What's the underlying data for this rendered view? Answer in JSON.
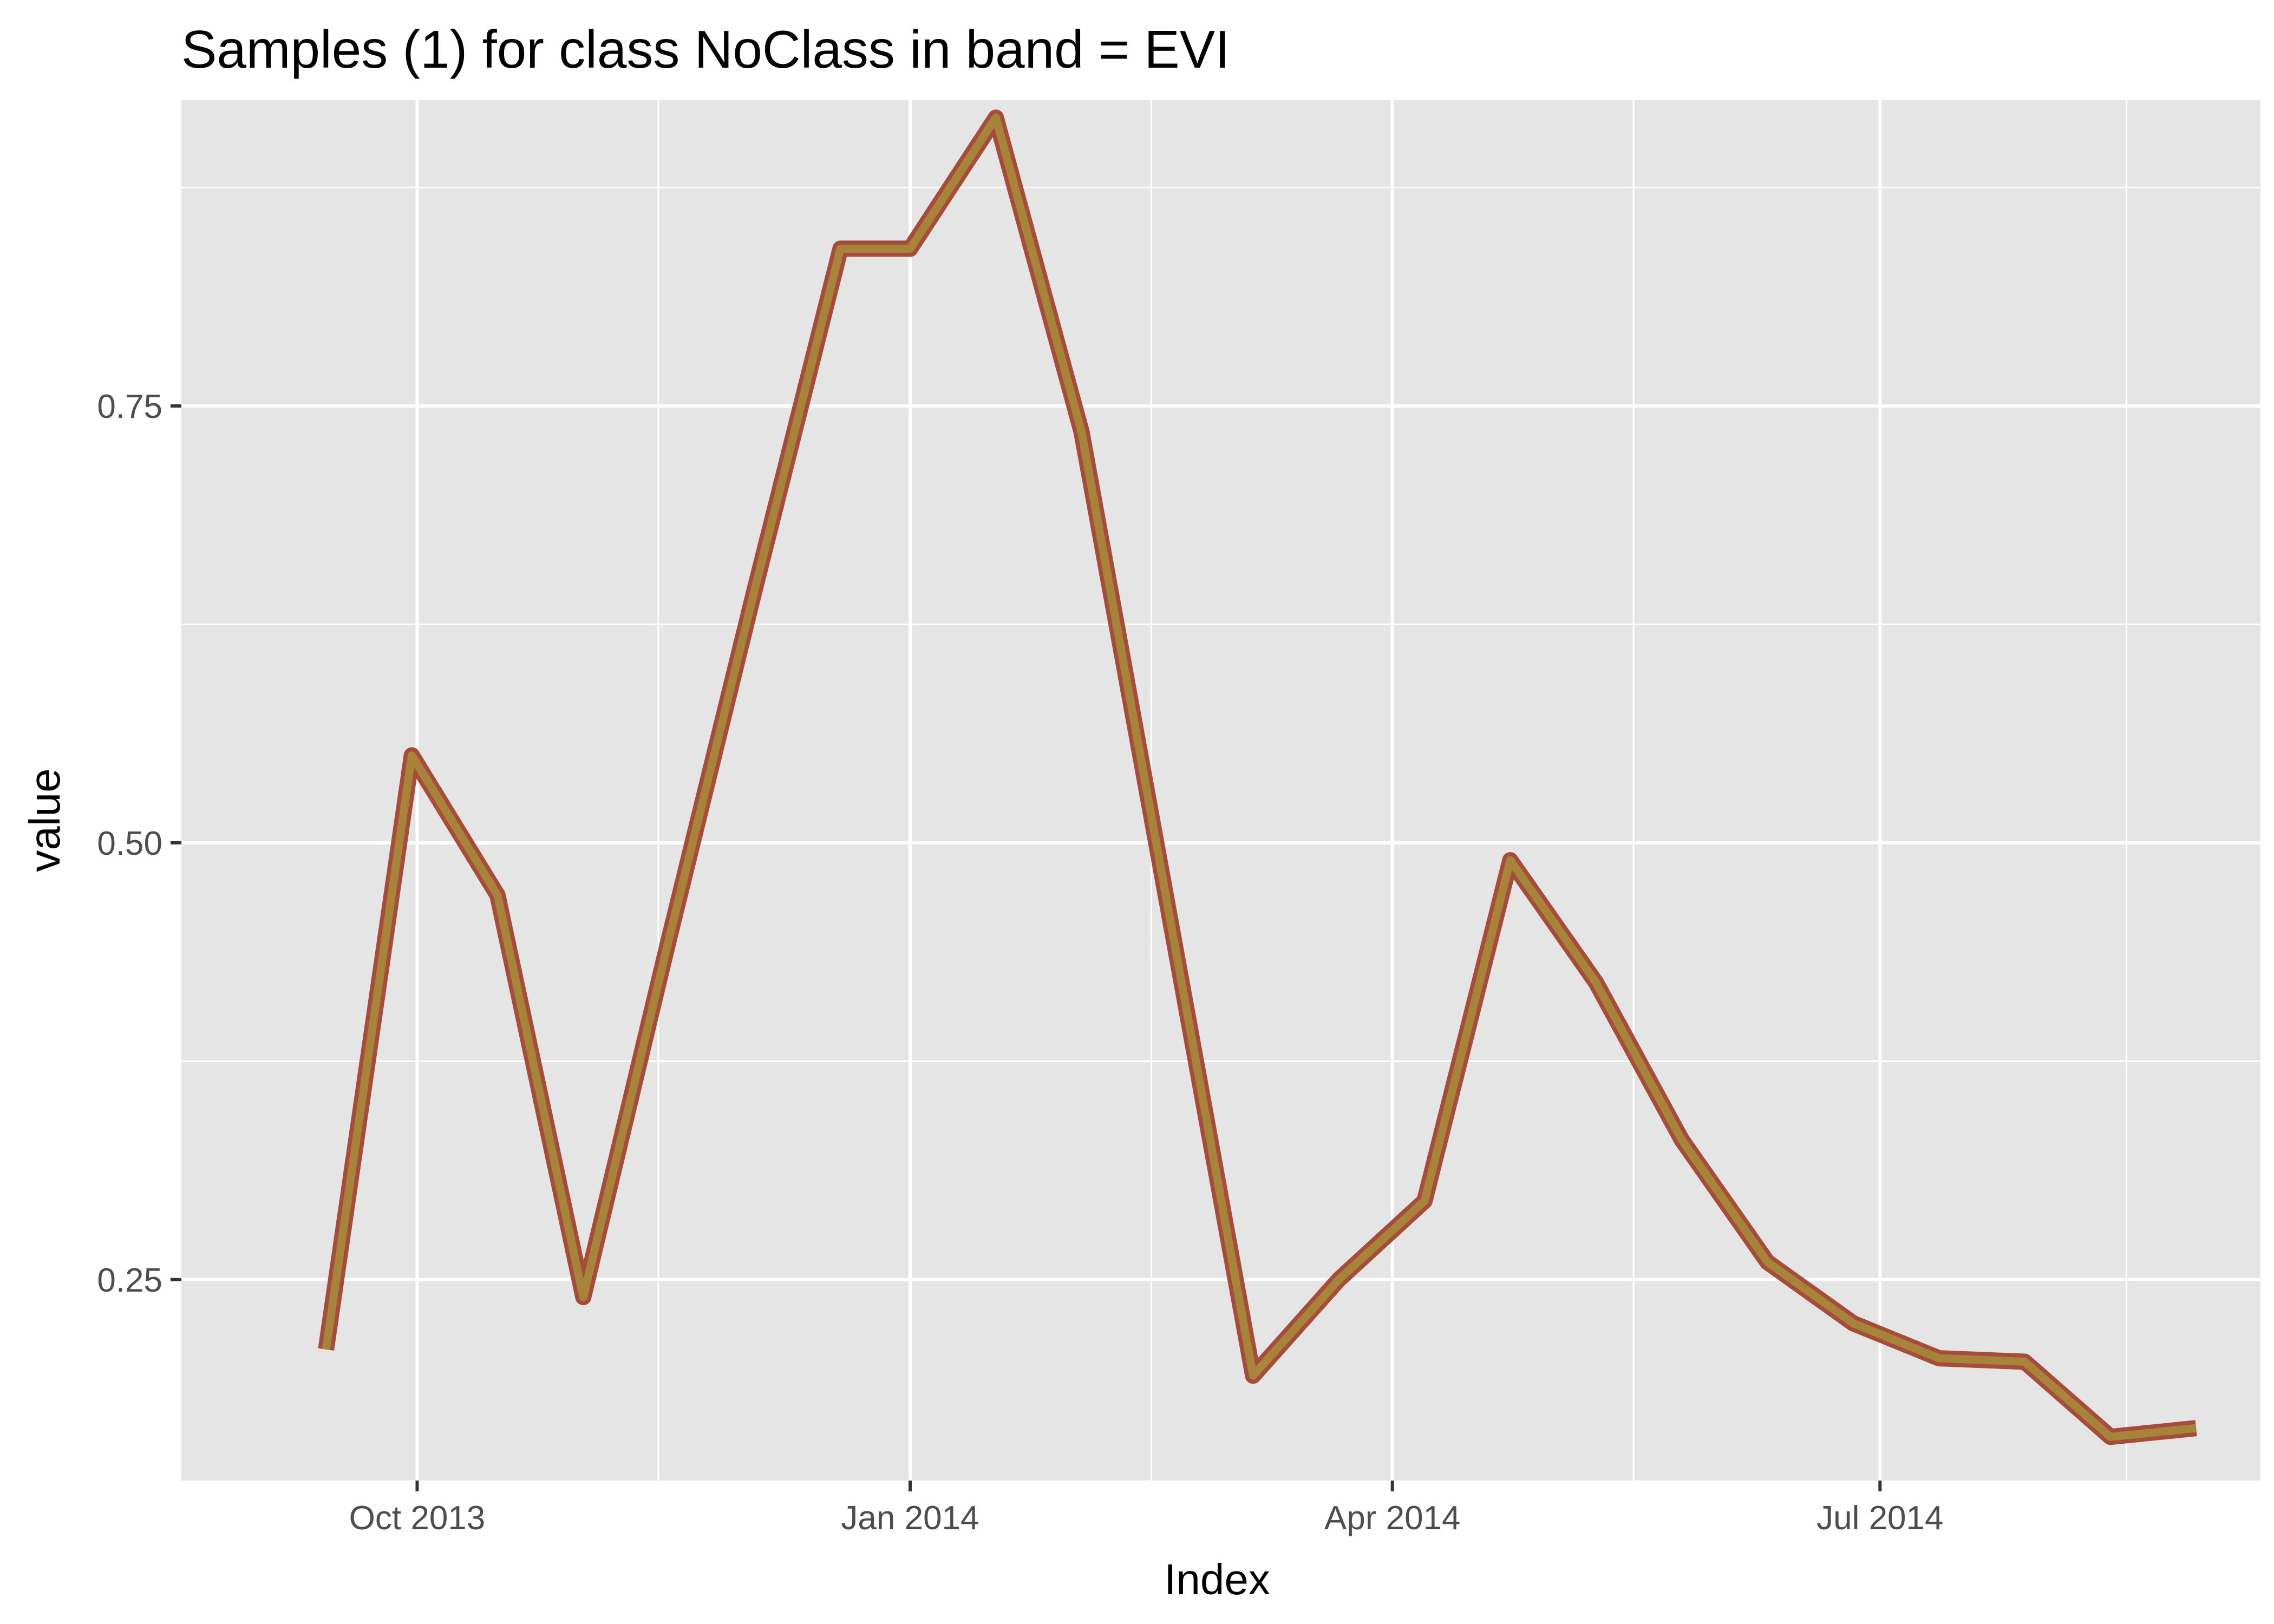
{
  "chart_data": {
    "type": "line",
    "title": "Samples (1) for class NoClass in band = EVI",
    "xlabel": "Index",
    "ylabel": "value",
    "x_axis": "date",
    "xlim": [
      "2013-08-18",
      "2014-09-10"
    ],
    "ylim": [
      0.135,
      0.925
    ],
    "x_ticks": [
      {
        "date": "2013-10-01",
        "label": "Oct 2013"
      },
      {
        "date": "2014-01-01",
        "label": "Jan 2014"
      },
      {
        "date": "2014-04-01",
        "label": "Apr 2014"
      },
      {
        "date": "2014-07-01",
        "label": "Jul 2014"
      }
    ],
    "x_minor_ticks": [
      "2013-11-15",
      "2014-02-15",
      "2014-05-16",
      "2014-08-16"
    ],
    "y_ticks": [
      {
        "value": 0.25,
        "label": "0.25"
      },
      {
        "value": 0.5,
        "label": "0.50"
      },
      {
        "value": 0.75,
        "label": "0.75"
      }
    ],
    "y_minor_ticks": [
      0.125,
      0.375,
      0.625,
      0.875
    ],
    "grid": true,
    "colors": {
      "panel": "#e5e5e5",
      "grid": "#ffffff",
      "line_outline": "#a54d3a",
      "line_fill": "#a8843a"
    },
    "series": [
      {
        "x": [
          "2013-09-14",
          "2013-09-30",
          "2013-10-16",
          "2013-11-01",
          "2013-11-17",
          "2013-12-03",
          "2013-12-19",
          "2014-01-01",
          "2014-01-17",
          "2014-02-02",
          "2014-02-18",
          "2014-03-06",
          "2014-03-22",
          "2014-04-07",
          "2014-04-23",
          "2014-05-09",
          "2014-05-25",
          "2014-06-10",
          "2014-06-26",
          "2014-07-12",
          "2014-07-28",
          "2014-08-13",
          "2014-08-29"
        ],
        "y": [
          0.21,
          0.55,
          0.47,
          0.24,
          0.445,
          0.645,
          0.84,
          0.84,
          0.915,
          0.735,
          0.465,
          0.195,
          0.25,
          0.295,
          0.49,
          0.42,
          0.33,
          0.26,
          0.225,
          0.205,
          0.203,
          0.16,
          0.165
        ]
      }
    ]
  }
}
